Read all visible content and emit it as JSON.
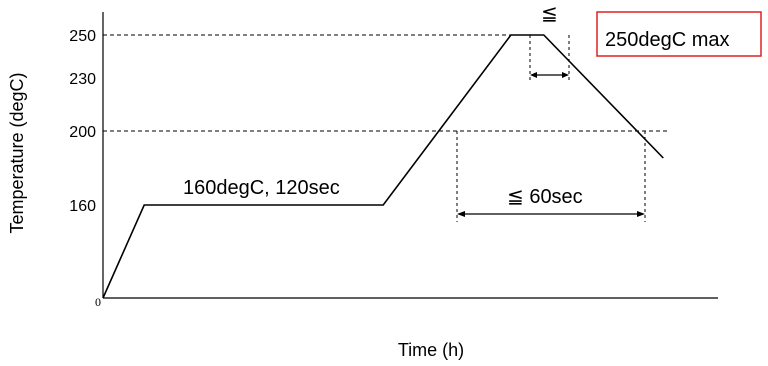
{
  "chart_data": {
    "type": "line",
    "title": "",
    "xlabel": "Time (h)",
    "ylabel": "Temperature (degC)",
    "y_ticks": [
      {
        "value": 0,
        "label": "0"
      },
      {
        "value": 160,
        "label": "160"
      },
      {
        "value": 200,
        "label": "200"
      },
      {
        "value": 230,
        "label": "230"
      },
      {
        "value": 250,
        "label": "250"
      }
    ],
    "ylim": [
      0,
      260
    ],
    "reference_lines": [
      250,
      200
    ],
    "series": [
      {
        "points": [
          {
            "x": 0,
            "y": 0
          },
          {
            "x": 1,
            "y": 160
          },
          {
            "x": 6.8,
            "y": 160
          },
          {
            "x": 9.9,
            "y": 250
          },
          {
            "x": 10.7,
            "y": 250
          },
          {
            "x": 13.6,
            "y": 190
          }
        ]
      }
    ],
    "annotations": {
      "soak": "160degC, 120sec",
      "above200": "≦ 60sec",
      "peak_hold": "≦",
      "max": "250degC max"
    },
    "colors": {
      "line": "#000000",
      "max_box": "#e02020"
    }
  }
}
